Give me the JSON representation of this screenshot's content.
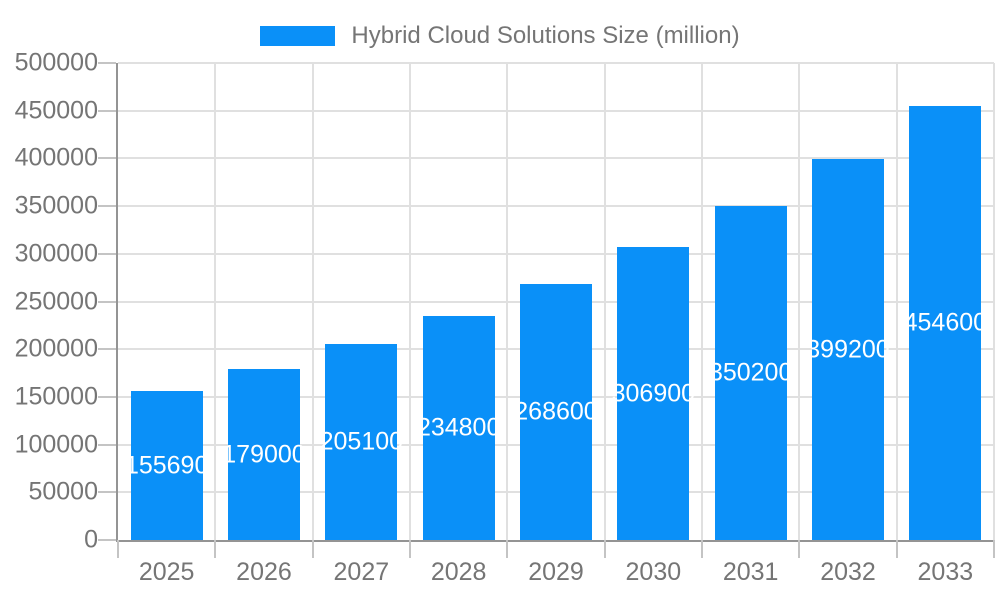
{
  "chart_data": {
    "type": "bar",
    "title": "Hybrid Cloud Solutions Size (million)",
    "categories": [
      "2025",
      "2026",
      "2027",
      "2028",
      "2029",
      "2030",
      "2031",
      "2032",
      "2033"
    ],
    "series": [
      {
        "name": "Hybrid Cloud Solutions Size (million)",
        "values": [
          155690,
          179000,
          205100,
          234800,
          268600,
          306900,
          350200,
          399200,
          454600
        ]
      }
    ],
    "xlabel": "",
    "ylabel": "",
    "ylim": [
      0,
      500000
    ],
    "ytick_step": 50000,
    "ytick_labels": [
      "0",
      "50000",
      "100000",
      "150000",
      "200000",
      "250000",
      "300000",
      "350000",
      "400000",
      "450000",
      "500000"
    ],
    "grid": true,
    "legend_position": "top",
    "value_labels_shown": true,
    "colors": {
      "bar": "#0a90f8",
      "value_label": "#ffffff",
      "axis_text": "#757575",
      "grid_line": "#e0e0e0",
      "axis_line": "#949494",
      "tick": "#c4c4c4",
      "background": "#ffffff"
    }
  }
}
